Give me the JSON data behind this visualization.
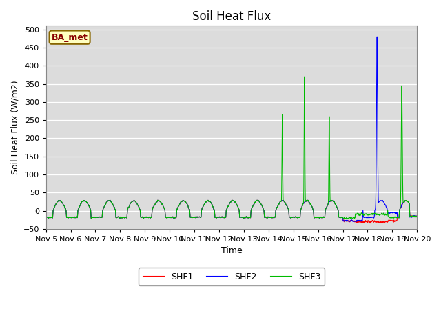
{
  "title": "Soil Heat Flux",
  "ylabel": "Soil Heat Flux (W/m2)",
  "xlabel": "Time",
  "legend_label": "BA_met",
  "series_labels": [
    "SHF1",
    "SHF2",
    "SHF3"
  ],
  "series_colors": [
    "#ff0000",
    "#0000ff",
    "#00bb00"
  ],
  "ylim": [
    -50,
    510
  ],
  "yticks": [
    -50,
    0,
    50,
    100,
    150,
    200,
    250,
    300,
    350,
    400,
    450,
    500
  ],
  "xtick_labels": [
    "Nov 5",
    "Nov 6",
    "Nov 7",
    "Nov 8",
    "Nov 9",
    "Nov 10",
    "Nov 11",
    "Nov 12",
    "Nov 13",
    "Nov 14",
    "Nov 15",
    "Nov 16",
    "Nov 17",
    "Nov 18",
    "Nov 19",
    "Nov 20"
  ],
  "background_color": "#dcdcdc",
  "title_fontsize": 12,
  "axis_label_fontsize": 9,
  "tick_fontsize": 8
}
